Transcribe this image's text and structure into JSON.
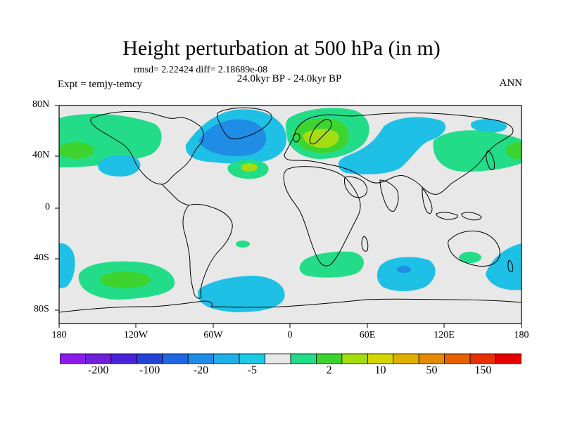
{
  "title": "Height perturbation at 500 hPa (in m)",
  "stats": "rmsd= 2.22424 diff= 2.18689e-08",
  "expt": "Expt = temjy-temcy",
  "period": "24.0kyr BP - 24.0kyr BP",
  "season": "ANN",
  "lat_labels": [
    "80N",
    "40N",
    "0",
    "40S",
    "80S"
  ],
  "lon_labels": [
    "180",
    "120W",
    "60W",
    "0",
    "60E",
    "120E",
    "180"
  ],
  "colorbar": {
    "colors": [
      "#8c1aeb",
      "#6f1ed9",
      "#4a22d9",
      "#2442d6",
      "#1f66e0",
      "#1f8ce6",
      "#1fb0e6",
      "#1fc9e6",
      "#e8e8e8",
      "#22dc88",
      "#3ed430",
      "#a4dd12",
      "#d6d600",
      "#e0b000",
      "#e68a00",
      "#e66000",
      "#e63000",
      "#e60000"
    ],
    "labels": [
      "-200",
      "-100",
      "-20",
      "-5",
      "2",
      "10",
      "50",
      "150"
    ]
  },
  "colors": {
    "neutral": "#e8e8e8",
    "light_blue": "#1fc0e6",
    "mid_blue": "#1f8ce6",
    "light_green": "#22dc88",
    "mid_green": "#3ed430",
    "lime": "#a4dd12"
  }
}
